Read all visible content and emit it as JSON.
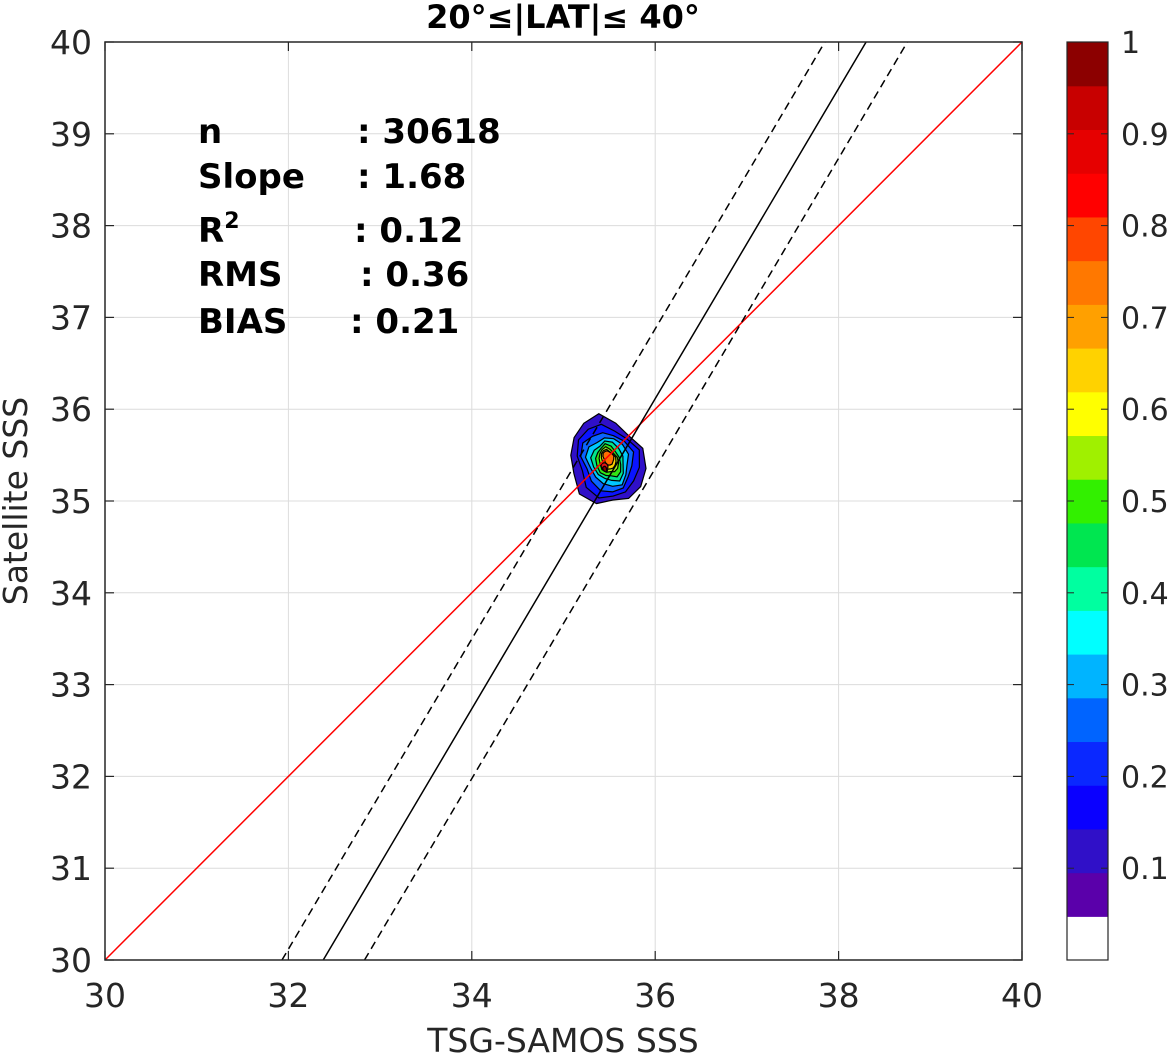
{
  "chart_data": {
    "type": "contour",
    "title": "20°≤|LAT|≤ 40°",
    "xlabel": "TSG-SAMOS SSS",
    "ylabel": "Satellite SSS",
    "xlim": [
      30,
      40
    ],
    "ylim": [
      30,
      40
    ],
    "x_ticks": [
      30,
      32,
      34,
      36,
      38,
      40
    ],
    "y_ticks": [
      30,
      31,
      32,
      33,
      34,
      35,
      36,
      37,
      38,
      39,
      40
    ],
    "grid": true,
    "stats": [
      {
        "label": "n",
        "value": ": 30618"
      },
      {
        "label": "Slope",
        "value": ": 1.68"
      },
      {
        "label": "R",
        "sup": "2",
        "value": ": 0.12"
      },
      {
        "label": "RMS",
        "value": ": 0.36"
      },
      {
        "label": "BIAS",
        "value": ": 0.21"
      }
    ],
    "lines": [
      {
        "name": "one-to-one",
        "color": "#ff0000",
        "style": "solid",
        "points": [
          [
            30,
            30
          ],
          [
            40,
            40
          ]
        ]
      },
      {
        "name": "regression",
        "color": "#000000",
        "style": "solid",
        "points": [
          [
            32.38,
            30
          ],
          [
            38.3,
            40
          ]
        ]
      },
      {
        "name": "regression-upper",
        "color": "#000000",
        "style": "dashed",
        "points": [
          [
            31.93,
            30
          ],
          [
            37.85,
            40
          ]
        ]
      },
      {
        "name": "regression-lower",
        "color": "#000000",
        "style": "dashed",
        "points": [
          [
            32.83,
            30
          ],
          [
            38.75,
            40
          ]
        ]
      }
    ],
    "density_center": [
      35.45,
      35.35
    ],
    "density_levels": [
      {
        "level": 0.05,
        "color": "#3010c8",
        "rx": 0.4,
        "ry": 0.48,
        "dx": 0.02,
        "dy": 0.08
      },
      {
        "level": 0.15,
        "color": "#0a14ff",
        "rx": 0.33,
        "ry": 0.4,
        "dx": 0.03,
        "dy": 0.08
      },
      {
        "level": 0.25,
        "color": "#0a64ff",
        "rx": 0.27,
        "ry": 0.33,
        "dx": 0.03,
        "dy": 0.08
      },
      {
        "level": 0.35,
        "color": "#00c8ff",
        "rx": 0.22,
        "ry": 0.27,
        "dx": 0.04,
        "dy": 0.08
      },
      {
        "level": 0.45,
        "color": "#00e68c",
        "rx": 0.17,
        "ry": 0.22,
        "dx": 0.04,
        "dy": 0.08
      },
      {
        "level": 0.55,
        "color": "#32e614",
        "rx": 0.13,
        "ry": 0.18,
        "dx": 0.04,
        "dy": 0.08
      },
      {
        "level": 0.65,
        "color": "#aaf014",
        "rx": 0.1,
        "ry": 0.14,
        "dx": 0.04,
        "dy": 0.09
      },
      {
        "level": 0.7,
        "color": "#ffd200",
        "rx": 0.075,
        "ry": 0.11,
        "dx": 0.04,
        "dy": 0.1
      },
      {
        "level": 0.8,
        "color": "#ff6e00",
        "rx": 0.055,
        "ry": 0.08,
        "dx": 0.04,
        "dy": 0.12
      },
      {
        "level": 0.9,
        "color": "#e61414",
        "rx": 0.035,
        "ry": 0.05,
        "dx": 0.0,
        "dy": 0.02
      },
      {
        "level": 1.0,
        "color": "#8c0000",
        "rx": 0.02,
        "ry": 0.03,
        "dx": 0.0,
        "dy": 0.0
      }
    ],
    "colorbar": {
      "colors": [
        "#ffffff",
        "#5a00aa",
        "#3010c8",
        "#0a00ff",
        "#0a28ff",
        "#0064ff",
        "#00b4ff",
        "#00ffff",
        "#00ffa0",
        "#00e650",
        "#32f000",
        "#a0f000",
        "#ffff00",
        "#ffd200",
        "#ffa000",
        "#ff7800",
        "#ff4600",
        "#ff0000",
        "#e60000",
        "#c80000",
        "#8c0000"
      ],
      "tick_labels": [
        "0.1",
        "0.2",
        "0.3",
        "0.4",
        "0.5",
        "0.6",
        "0.7",
        "0.8",
        "0.9",
        "1"
      ],
      "tick_values": [
        0.1,
        0.2,
        0.3,
        0.4,
        0.5,
        0.6,
        0.7,
        0.8,
        0.9,
        1.0
      ]
    }
  }
}
